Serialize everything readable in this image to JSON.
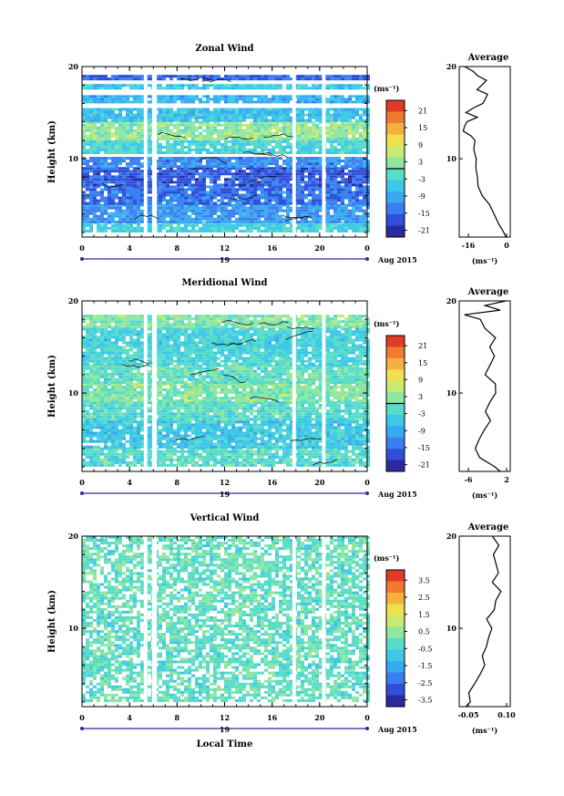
{
  "panels": [
    {
      "title": "Zonal Wind",
      "avg_title": "Average",
      "ylabel": "Height (km)",
      "unit": "(ms⁻¹)",
      "avg_unit": "(ms⁻¹)",
      "date_label": "Aug 2015",
      "day_label": "19",
      "yticks": [
        "20",
        "10"
      ],
      "xticks": [
        "0",
        "4",
        "8",
        "12",
        "16",
        "20",
        "0"
      ],
      "avg_xticks": [
        "-16",
        "0"
      ],
      "colorbar_labels": [
        "21",
        "15",
        "9",
        "3",
        "-3",
        "-9",
        "-15",
        "-21"
      ]
    },
    {
      "title": "Meridional Wind",
      "avg_title": "Average",
      "ylabel": "Height (km)",
      "unit": "(ms⁻¹)",
      "avg_unit": "(ms⁻¹)",
      "date_label": "Aug 2015",
      "day_label": "19",
      "yticks": [
        "20",
        "10"
      ],
      "xticks": [
        "0",
        "4",
        "8",
        "12",
        "16",
        "20",
        "0"
      ],
      "avg_xticks": [
        "-6",
        "2"
      ],
      "colorbar_labels": [
        "21",
        "15",
        "9",
        "3",
        "-3",
        "-9",
        "-15",
        "-21"
      ]
    },
    {
      "title": "Vertical Wind",
      "avg_title": "Average",
      "ylabel": "Height (km)",
      "unit": "(ms⁻¹)",
      "avg_unit": "(ms⁻¹)",
      "date_label": "Aug 2015",
      "day_label": "19",
      "yticks": [
        "20",
        "10"
      ],
      "xticks": [
        "0",
        "4",
        "8",
        "12",
        "16",
        "20",
        "0"
      ],
      "avg_xticks": [
        "-0.05",
        "0.10"
      ],
      "colorbar_labels": [
        "3.5",
        "2.5",
        "1.5",
        "0.5",
        "-0.5",
        "-1.5",
        "-2.5",
        "-3.5"
      ],
      "xlabel": "Local Time"
    }
  ],
  "chart_data": [
    {
      "type": "heatmap",
      "title": "Zonal Wind",
      "x_range_local_time_h": [
        0,
        24
      ],
      "y_range_km": [
        1.5,
        20
      ],
      "colorbar_range": [
        -21,
        21
      ],
      "contour_level": 0,
      "bands": [
        {
          "z": [
            2,
            3
          ],
          "value": -4
        },
        {
          "z": [
            3,
            5
          ],
          "value": -10
        },
        {
          "z": [
            5,
            7
          ],
          "value": -13
        },
        {
          "z": [
            7,
            9
          ],
          "value": -15
        },
        {
          "z": [
            9,
            10
          ],
          "value": -11
        },
        {
          "z": [
            10.5,
            12
          ],
          "value": -3
        },
        {
          "z": [
            12,
            14
          ],
          "value": 2
        },
        {
          "z": [
            14,
            15.5
          ],
          "value": -6
        },
        {
          "z": [
            16,
            16.8
          ],
          "value": -8
        },
        {
          "z": [
            17.5,
            18
          ],
          "value": -5
        },
        {
          "z": [
            18.5,
            19
          ],
          "value": -14
        }
      ],
      "gaps_local_time_h": [
        [
          5.2,
          5.5
        ],
        [
          5.9,
          6.3
        ],
        [
          17.7,
          18.0
        ],
        [
          20.2,
          20.5
        ]
      ],
      "average_profile": {
        "xlim": [
          -20,
          2
        ],
        "height_km": [
          1.5,
          2,
          3,
          4,
          5,
          6,
          7,
          8,
          9,
          10,
          11,
          12,
          12.5,
          13,
          13.5,
          14,
          14.5,
          15,
          15.5,
          16,
          16.5,
          17,
          17.5,
          18,
          18.5,
          19,
          19.5,
          20
        ],
        "value": [
          0,
          -1,
          -3,
          -5,
          -7,
          -10,
          -12,
          -12,
          -13,
          -13,
          -14,
          -13,
          -15,
          -18,
          -18,
          -17,
          -12,
          -17,
          -14,
          -10,
          -9,
          -8,
          -12,
          -10,
          -8,
          -12,
          -14,
          -18
        ]
      }
    },
    {
      "type": "heatmap",
      "title": "Meridional Wind",
      "x_range_local_time_h": [
        0,
        24
      ],
      "y_range_km": [
        1.5,
        20
      ],
      "colorbar_range": [
        -21,
        21
      ],
      "contour_level": 0,
      "bands": [
        {
          "z": [
            2,
            4
          ],
          "value": -2
        },
        {
          "z": [
            4,
            7
          ],
          "value": -5
        },
        {
          "z": [
            7,
            9
          ],
          "value": -2
        },
        {
          "z": [
            9,
            11
          ],
          "value": 1
        },
        {
          "z": [
            11,
            13
          ],
          "value": -1
        },
        {
          "z": [
            13,
            15
          ],
          "value": -3
        },
        {
          "z": [
            15,
            17
          ],
          "value": -4
        },
        {
          "z": [
            17,
            18.5
          ],
          "value": 1
        }
      ],
      "gaps_local_time_h": [
        [
          5.2,
          5.5
        ],
        [
          5.9,
          6.3
        ],
        [
          17.7,
          18.0
        ],
        [
          20.2,
          20.5
        ]
      ],
      "average_profile": {
        "xlim": [
          -7,
          3
        ],
        "height_km": [
          1.5,
          2,
          3,
          4,
          5,
          6,
          7,
          8,
          9,
          10,
          11,
          12,
          13,
          14,
          15,
          16,
          17,
          18,
          18.5,
          19,
          19.5,
          20
        ],
        "value": [
          1,
          0,
          -3,
          -4,
          -3,
          -2,
          -1,
          -2,
          -1,
          0,
          0,
          -2,
          -1,
          0,
          -1,
          0,
          -2,
          -3,
          -6,
          1,
          -2,
          2
        ]
      }
    },
    {
      "type": "heatmap",
      "title": "Vertical Wind",
      "x_range_local_time_h": [
        0,
        24
      ],
      "y_range_km": [
        1.5,
        20
      ],
      "colorbar_range": [
        -3.5,
        3.5
      ],
      "xlabel": "Local Time",
      "bands": [
        {
          "z": [
            2,
            20
          ],
          "value": -0.2
        }
      ],
      "gaps_local_time_h": [
        [
          5.2,
          5.5
        ],
        [
          5.9,
          6.3
        ],
        [
          17.7,
          18.0
        ],
        [
          20.2,
          20.5
        ]
      ],
      "average_profile": {
        "xlim": [
          -0.1,
          0.12
        ],
        "height_km": [
          1.5,
          2,
          3,
          4,
          5,
          6,
          7,
          8,
          9,
          10,
          11,
          12,
          13,
          14,
          15,
          16,
          17,
          18,
          19,
          20
        ],
        "value": [
          -0.07,
          -0.05,
          -0.06,
          -0.03,
          -0.01,
          0.01,
          0.0,
          0.02,
          0.03,
          0.04,
          0.02,
          0.05,
          0.06,
          0.08,
          0.04,
          0.07,
          0.06,
          0.05,
          0.07,
          0.04
        ]
      }
    }
  ]
}
